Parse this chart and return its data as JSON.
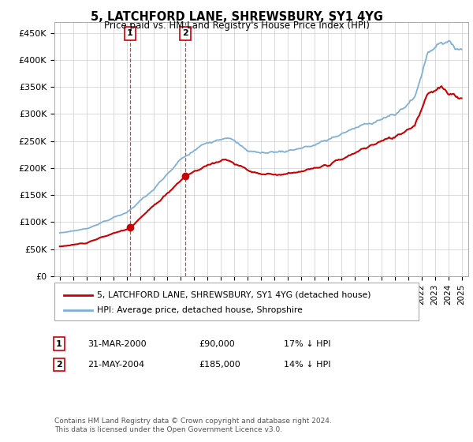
{
  "title": "5, LATCHFORD LANE, SHREWSBURY, SY1 4YG",
  "subtitle": "Price paid vs. HM Land Registry's House Price Index (HPI)",
  "legend_line1": "5, LATCHFORD LANE, SHREWSBURY, SY1 4YG (detached house)",
  "legend_line2": "HPI: Average price, detached house, Shropshire",
  "transaction1_date": "31-MAR-2000",
  "transaction1_price": "£90,000",
  "transaction1_hpi": "17% ↓ HPI",
  "transaction1_year": 2000.25,
  "transaction1_value": 90000,
  "transaction2_date": "21-MAY-2004",
  "transaction2_price": "£185,000",
  "transaction2_hpi": "14% ↓ HPI",
  "transaction2_year": 2004.38,
  "transaction2_value": 185000,
  "line_color_red": "#cc0000",
  "line_color_blue": "#7fb0d8",
  "background_color": "#ffffff",
  "grid_color": "#cccccc",
  "ylim_min": 0,
  "ylim_max": 470000,
  "yticks": [
    0,
    50000,
    100000,
    150000,
    200000,
    250000,
    300000,
    350000,
    400000,
    450000
  ],
  "xlim_min": 1994.6,
  "xlim_max": 2025.5,
  "footnote1": "Contains HM Land Registry data © Crown copyright and database right 2024.",
  "footnote2": "This data is licensed under the Open Government Licence v3.0."
}
